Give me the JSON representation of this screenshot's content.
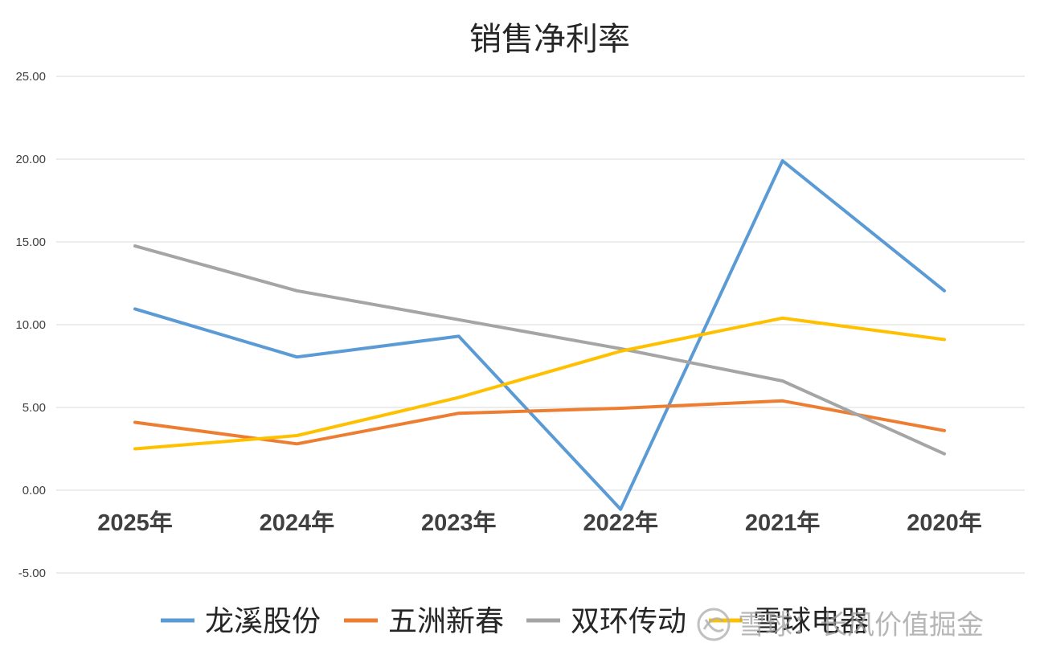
{
  "chart_data": {
    "type": "line",
    "title": "销售净利率",
    "categories": [
      "2025年",
      "2024年",
      "2023年",
      "2022年",
      "2021年",
      "2020年"
    ],
    "y_ticks": [
      "25.00",
      "20.00",
      "15.00",
      "10.00",
      "5.00",
      "0.00",
      "-5.00"
    ],
    "ylim": [
      -5,
      25
    ],
    "grid": true,
    "legend_position": "bottom",
    "series": [
      {
        "name": "龙溪股份",
        "color": "#5B9BD5",
        "values": [
          10.95,
          8.05,
          9.3,
          -1.15,
          19.9,
          12.05
        ]
      },
      {
        "name": "五洲新春",
        "color": "#ED7D31",
        "values": [
          4.1,
          2.8,
          4.65,
          4.95,
          5.4,
          3.6
        ]
      },
      {
        "name": "双环传动",
        "color": "#A5A5A5",
        "values": [
          14.75,
          12.05,
          10.3,
          8.55,
          6.6,
          2.2
        ]
      },
      {
        "name": "雪球电器",
        "color": "#FFC000",
        "values": [
          2.5,
          3.3,
          5.6,
          8.4,
          10.4,
          9.1
        ]
      }
    ]
  },
  "watermark": {
    "text": "雪球：长风价值掘金",
    "icon": "snowball-logo-icon"
  }
}
